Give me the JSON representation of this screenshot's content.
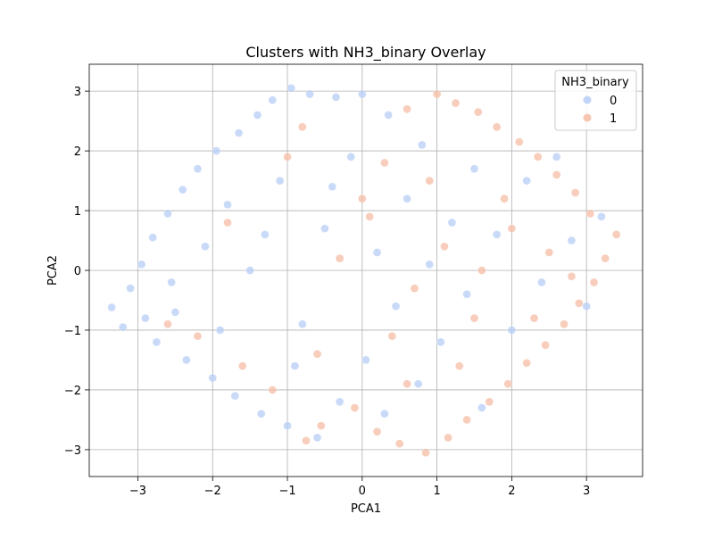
{
  "chart_data": {
    "type": "scatter",
    "title": "Clusters with NH3_binary Overlay",
    "xlabel": "PCA1",
    "ylabel": "PCA2",
    "xlim": [
      -3.65,
      3.75
    ],
    "ylim": [
      -3.45,
      3.45
    ],
    "xticks": [
      -3,
      -2,
      -1,
      0,
      1,
      2,
      3
    ],
    "yticks": [
      -3,
      -2,
      -1,
      0,
      1,
      2,
      3
    ],
    "xtick_labels": [
      "−3",
      "−2",
      "−1",
      "0",
      "1",
      "2",
      "3"
    ],
    "ytick_labels": [
      "−3",
      "−2",
      "−1",
      "0",
      "1",
      "2",
      "3"
    ],
    "grid": true,
    "legend": {
      "title": "NH3_binary",
      "placement": "upper right",
      "entries": [
        {
          "label": "0",
          "color": "#b7cdf7"
        },
        {
          "label": "1",
          "color": "#f5bca4"
        }
      ]
    },
    "series": [
      {
        "name": "0",
        "color": "#b7cdf7",
        "points": [
          [
            -3.35,
            -0.62
          ],
          [
            -3.2,
            -0.95
          ],
          [
            -3.1,
            -0.3
          ],
          [
            -2.95,
            0.1
          ],
          [
            -2.9,
            -0.8
          ],
          [
            -2.8,
            0.55
          ],
          [
            -2.75,
            -1.2
          ],
          [
            -2.6,
            0.95
          ],
          [
            -2.55,
            -0.2
          ],
          [
            -2.4,
            1.35
          ],
          [
            -2.35,
            -1.5
          ],
          [
            -2.2,
            1.7
          ],
          [
            -2.1,
            0.4
          ],
          [
            -2.0,
            -1.8
          ],
          [
            -1.95,
            2.0
          ],
          [
            -1.8,
            1.1
          ],
          [
            -1.7,
            -2.1
          ],
          [
            -1.65,
            2.3
          ],
          [
            -1.5,
            0.0
          ],
          [
            -1.4,
            2.6
          ],
          [
            -1.35,
            -2.4
          ],
          [
            -1.2,
            2.85
          ],
          [
            -1.1,
            1.5
          ],
          [
            -1.0,
            -2.6
          ],
          [
            -0.95,
            3.05
          ],
          [
            -0.8,
            -0.9
          ],
          [
            -0.7,
            2.95
          ],
          [
            -0.6,
            -2.8
          ],
          [
            -0.5,
            0.7
          ],
          [
            -0.35,
            2.9
          ],
          [
            -0.3,
            -2.2
          ],
          [
            -0.15,
            1.9
          ],
          [
            0.0,
            2.95
          ],
          [
            0.05,
            -1.5
          ],
          [
            0.2,
            0.3
          ],
          [
            0.35,
            2.6
          ],
          [
            0.45,
            -0.6
          ],
          [
            0.6,
            1.2
          ],
          [
            0.75,
            -1.9
          ],
          [
            0.9,
            0.1
          ],
          [
            1.05,
            -1.2
          ],
          [
            1.2,
            0.8
          ],
          [
            1.4,
            -0.4
          ],
          [
            1.6,
            -2.3
          ],
          [
            1.8,
            0.6
          ],
          [
            2.0,
            -1.0
          ],
          [
            2.2,
            1.5
          ],
          [
            2.4,
            -0.2
          ],
          [
            2.6,
            1.9
          ],
          [
            2.8,
            0.5
          ],
          [
            3.0,
            -0.6
          ],
          [
            3.2,
            0.9
          ],
          [
            -2.5,
            -0.7
          ],
          [
            -1.9,
            -1.0
          ],
          [
            -1.3,
            0.6
          ],
          [
            -0.9,
            -1.6
          ],
          [
            -0.4,
            1.4
          ],
          [
            0.3,
            -2.4
          ],
          [
            0.8,
            2.1
          ],
          [
            1.5,
            1.7
          ]
        ]
      },
      {
        "name": "1",
        "color": "#f5bca4",
        "points": [
          [
            3.4,
            0.6
          ],
          [
            3.25,
            0.2
          ],
          [
            3.1,
            -0.2
          ],
          [
            3.05,
            0.95
          ],
          [
            2.9,
            -0.55
          ],
          [
            2.85,
            1.3
          ],
          [
            2.7,
            -0.9
          ],
          [
            2.6,
            1.6
          ],
          [
            2.45,
            -1.25
          ],
          [
            2.35,
            1.9
          ],
          [
            2.2,
            -1.55
          ],
          [
            2.1,
            2.15
          ],
          [
            1.95,
            -1.9
          ],
          [
            1.8,
            2.4
          ],
          [
            1.7,
            -2.2
          ],
          [
            1.55,
            2.65
          ],
          [
            1.4,
            -2.5
          ],
          [
            1.25,
            2.8
          ],
          [
            1.15,
            -2.8
          ],
          [
            1.0,
            2.95
          ],
          [
            0.85,
            -3.05
          ],
          [
            0.6,
            2.7
          ],
          [
            0.5,
            -2.9
          ],
          [
            0.3,
            1.8
          ],
          [
            0.2,
            -2.7
          ],
          [
            0.1,
            0.9
          ],
          [
            -0.1,
            -2.3
          ],
          [
            -0.3,
            0.2
          ],
          [
            -0.55,
            -2.6
          ],
          [
            -0.75,
            -2.85
          ],
          [
            0.7,
            -0.3
          ],
          [
            1.1,
            0.4
          ],
          [
            1.6,
            0.0
          ],
          [
            2.0,
            0.7
          ],
          [
            2.5,
            0.3
          ],
          [
            1.3,
            -1.6
          ],
          [
            0.4,
            -1.1
          ],
          [
            -0.6,
            -1.4
          ],
          [
            -1.2,
            -2.0
          ],
          [
            -1.6,
            -1.6
          ],
          [
            -2.2,
            -1.1
          ],
          [
            -2.6,
            -0.9
          ],
          [
            -1.8,
            0.8
          ],
          [
            -1.0,
            1.9
          ],
          [
            -0.8,
            2.4
          ],
          [
            0.0,
            1.2
          ],
          [
            0.9,
            1.5
          ],
          [
            1.9,
            1.2
          ],
          [
            2.3,
            -0.8
          ],
          [
            1.5,
            -0.8
          ],
          [
            0.6,
            -1.9
          ],
          [
            2.8,
            -0.1
          ]
        ]
      }
    ]
  }
}
